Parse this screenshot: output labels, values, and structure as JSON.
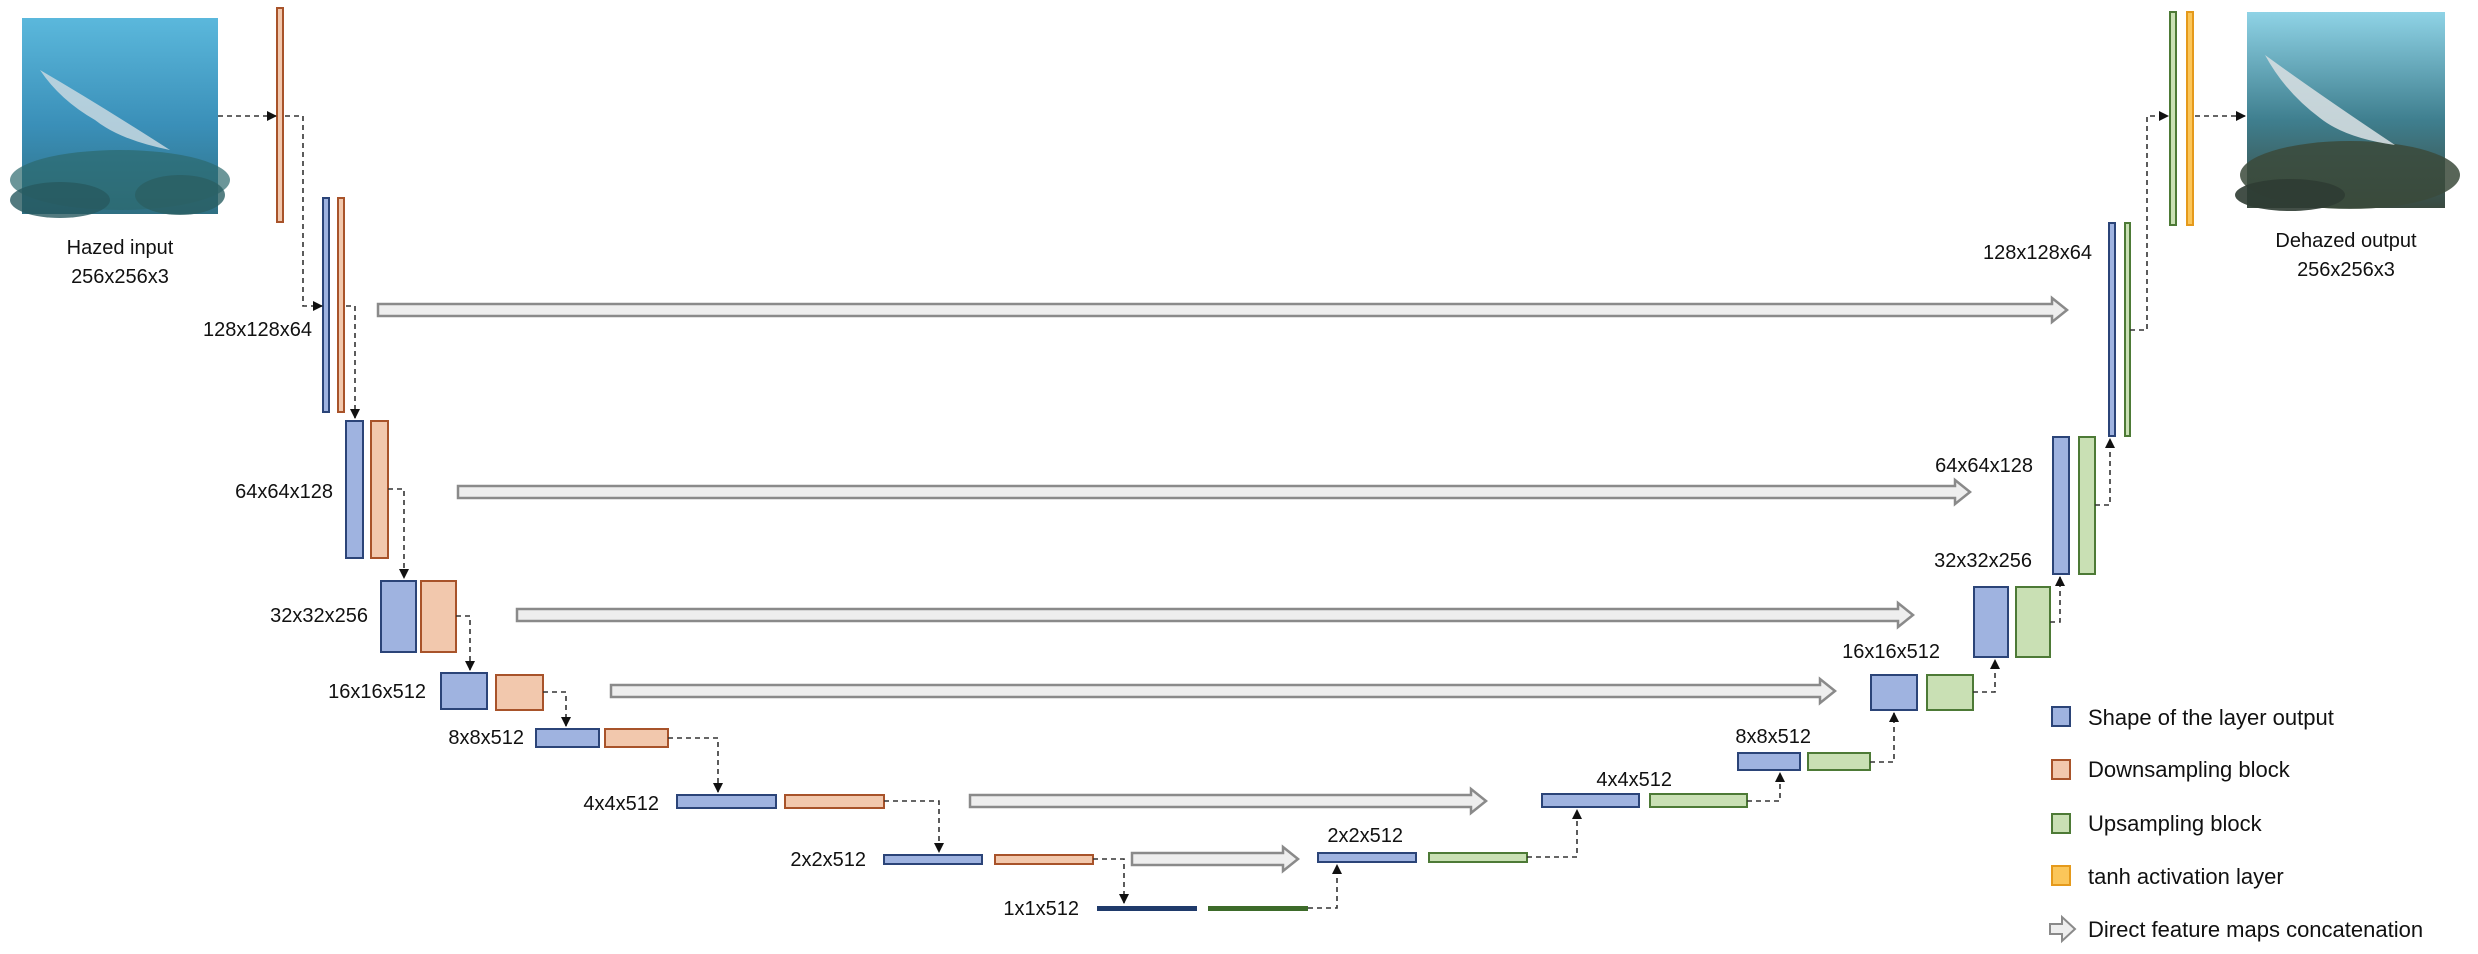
{
  "input": {
    "label": "Hazed input",
    "dims": "256x256x3"
  },
  "output": {
    "label": "Dehazed output",
    "dims": "256x256x3"
  },
  "encoder_labels": [
    "128x128x64",
    "64x64x128",
    "32x32x256",
    "16x16x512",
    "8x8x512",
    "4x4x512",
    "2x2x512",
    "1x1x512"
  ],
  "decoder_labels": [
    "128x128x64",
    "64x64x128",
    "32x32x256",
    "16x16x512",
    "8x8x512",
    "4x4x512",
    "2x2x512"
  ],
  "legend": [
    {
      "label": "Shape of the layer output",
      "fill": "#9fb3e0",
      "stroke": "#2b4478",
      "shape": "box"
    },
    {
      "label": "Downsampling block",
      "fill": "#f2c8ad",
      "stroke": "#a8532a",
      "shape": "box"
    },
    {
      "label": "Upsampling block",
      "fill": "#c9e0b4",
      "stroke": "#4d7a36",
      "shape": "box"
    },
    {
      "label": "tanh activation layer",
      "fill": "#fbc65a",
      "stroke": "#e59a1c",
      "shape": "box"
    },
    {
      "label": "Direct feature maps concatenation",
      "fill": "#eeeeee",
      "stroke": "#8a8a8a",
      "shape": "arrow"
    }
  ],
  "colors": {
    "shape": "#9fb3e0",
    "shape_stroke": "#2b4478",
    "down": "#f2c8ad",
    "down_stroke": "#a8532a",
    "up": "#c9e0b4",
    "up_stroke": "#4d7a36",
    "tanh": "#fbc65a",
    "tanh_stroke": "#e59a1c",
    "skip": "#eeeeee",
    "skip_stroke": "#8a8a8a",
    "dark_blue": "#1f3a6b",
    "dark_green": "#3d6b2a",
    "water_top": "#5bb8dc",
    "water_mid": "#3a8fb8",
    "water_bottom": "#2f6f82"
  }
}
